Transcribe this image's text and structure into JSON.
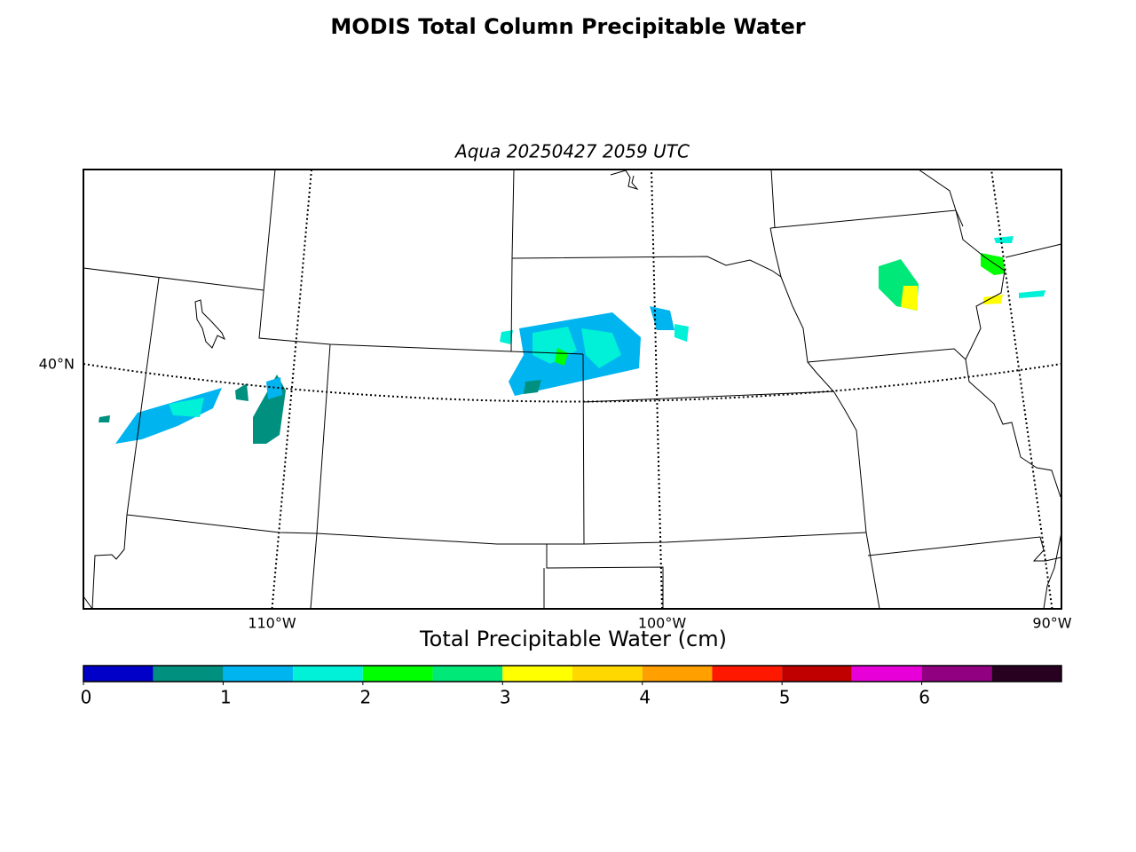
{
  "title": "MODIS Total Column Precipitable Water",
  "map": {
    "subtitle": "Aqua 20250427 2059 UTC",
    "lat_labels": [
      {
        "value": 40,
        "label": "40°N"
      }
    ],
    "lon_labels": [
      {
        "value": -110,
        "label": "110°W"
      },
      {
        "value": -100,
        "label": "100°W"
      },
      {
        "value": -90,
        "label": "90°W"
      }
    ]
  },
  "colorbar": {
    "label": "Total Precipitable Water (cm)",
    "levels": [
      0,
      0.5,
      1,
      1.5,
      2,
      2.5,
      3,
      3.5,
      4,
      4.5,
      5,
      5.5,
      6,
      6.5,
      7
    ],
    "ticks": [
      0,
      1,
      2,
      3,
      4,
      5,
      6
    ],
    "colors": [
      "#0000c8",
      "#009080",
      "#00b4f0",
      "#00f0d8",
      "#00ff00",
      "#00e878",
      "#ffff00",
      "#ffd800",
      "#ffa000",
      "#ff1800",
      "#c00000",
      "#e800d8",
      "#900080",
      "#280020"
    ]
  }
}
